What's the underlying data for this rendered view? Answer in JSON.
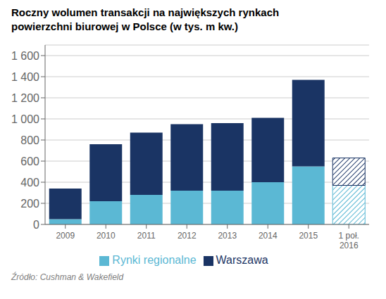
{
  "chart_data": {
    "type": "bar",
    "title": "Roczny wolumen transakcji na największych rynkach",
    "subtitle": "powierzchni biurowej w Polsce (w tys. m kw.)",
    "categories": [
      "2009",
      "2010",
      "2011",
      "2012",
      "2013",
      "2014",
      "2015",
      "1 poł.\n2016"
    ],
    "series": [
      {
        "name": "Rynki regionalne",
        "color": "#5BB8D4",
        "values": [
          50,
          220,
          280,
          320,
          320,
          400,
          550,
          370
        ]
      },
      {
        "name": "Warszawa",
        "color": "#1A3464",
        "values": [
          290,
          540,
          590,
          630,
          640,
          610,
          820,
          260
        ]
      }
    ],
    "stacked": true,
    "ylim": [
      0,
      1700
    ],
    "yticks": [
      0,
      200,
      400,
      600,
      800,
      {
        "value": 1000,
        "label": "1 000"
      },
      {
        "value": 1200,
        "label": "1 200"
      },
      {
        "value": 1400,
        "label": "1 400"
      },
      {
        "value": 1600,
        "label": "1 600"
      }
    ],
    "grid": true,
    "legend": "bottom",
    "annotations": [
      "Źródło: Cushman & Wakefield"
    ]
  }
}
